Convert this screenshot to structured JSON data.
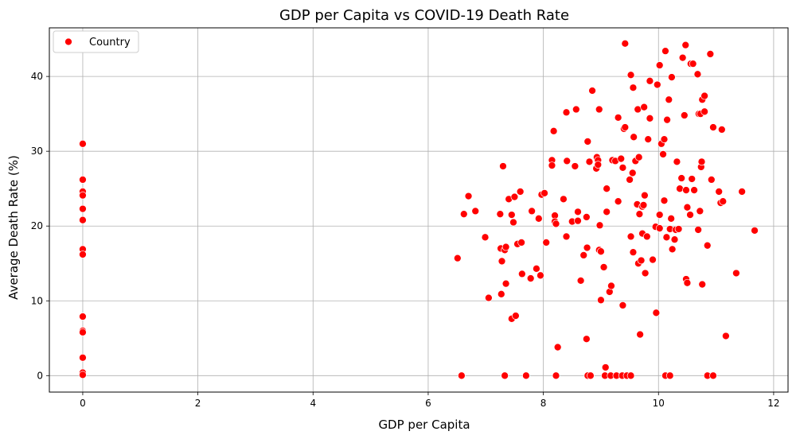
{
  "chart_data": {
    "type": "scatter",
    "title": "GDP per Capita vs COVID-19 Death Rate",
    "xlabel": "GDP per Capita",
    "ylabel": "Average Death Rate (%)",
    "xlim": [
      -0.58,
      12.25
    ],
    "ylim": [
      -2.2,
      46.5
    ],
    "xticks": [
      0,
      2,
      4,
      6,
      8,
      10,
      12
    ],
    "yticks": [
      0,
      10,
      20,
      30,
      40
    ],
    "grid": true,
    "legend_position": "top-left",
    "marker_color": "#ff0000",
    "series": [
      {
        "name": "Country",
        "points": [
          [
            0,
            31.0
          ],
          [
            0,
            26.2
          ],
          [
            0,
            24.6
          ],
          [
            0,
            24.1
          ],
          [
            0,
            22.3
          ],
          [
            0,
            20.8
          ],
          [
            0,
            16.9
          ],
          [
            0,
            16.2
          ],
          [
            0,
            7.9
          ],
          [
            0,
            6.0
          ],
          [
            0,
            5.8
          ],
          [
            0,
            2.4
          ],
          [
            0,
            0.4
          ],
          [
            0,
            0.1
          ],
          [
            6.51,
            15.7
          ],
          [
            6.62,
            21.6
          ],
          [
            6.7,
            24.0
          ],
          [
            6.82,
            22.0
          ],
          [
            6.99,
            18.5
          ],
          [
            7.05,
            10.4
          ],
          [
            7.25,
            21.6
          ],
          [
            7.26,
            17.0
          ],
          [
            7.27,
            10.9
          ],
          [
            7.28,
            15.3
          ],
          [
            7.3,
            28.0
          ],
          [
            7.33,
            16.8
          ],
          [
            7.35,
            17.2
          ],
          [
            7.35,
            12.3
          ],
          [
            7.4,
            23.6
          ],
          [
            7.45,
            21.5
          ],
          [
            7.45,
            7.6
          ],
          [
            7.48,
            20.5
          ],
          [
            7.5,
            23.9
          ],
          [
            7.52,
            8.0
          ],
          [
            7.55,
            17.6
          ],
          [
            7.6,
            24.6
          ],
          [
            7.62,
            17.8
          ],
          [
            7.63,
            13.6
          ],
          [
            7.78,
            13.0
          ],
          [
            7.8,
            22.0
          ],
          [
            7.88,
            14.3
          ],
          [
            7.92,
            21.0
          ],
          [
            7.95,
            13.4
          ],
          [
            7.97,
            24.2
          ],
          [
            8.02,
            24.4
          ],
          [
            8.05,
            17.8
          ],
          [
            8.15,
            28.8
          ],
          [
            8.15,
            28.1
          ],
          [
            8.18,
            32.7
          ],
          [
            8.2,
            21.4
          ],
          [
            8.2,
            20.6
          ],
          [
            8.22,
            20.3
          ],
          [
            8.25,
            3.8
          ],
          [
            8.35,
            23.6
          ],
          [
            8.4,
            18.6
          ],
          [
            8.4,
            35.2
          ],
          [
            8.41,
            28.7
          ],
          [
            8.5,
            20.6
          ],
          [
            8.55,
            28.0
          ],
          [
            8.57,
            35.6
          ],
          [
            8.6,
            21.9
          ],
          [
            8.6,
            20.7
          ],
          [
            8.65,
            12.7
          ],
          [
            8.7,
            16.1
          ],
          [
            8.75,
            21.2
          ],
          [
            8.75,
            4.9
          ],
          [
            8.76,
            17.1
          ],
          [
            8.77,
            31.3
          ],
          [
            8.8,
            28.6
          ],
          [
            8.85,
            38.1
          ],
          [
            8.92,
            27.7
          ],
          [
            8.93,
            29.2
          ],
          [
            8.95,
            28.8
          ],
          [
            8.95,
            28.2
          ],
          [
            8.97,
            16.8
          ],
          [
            8.97,
            35.6
          ],
          [
            8.98,
            20.1
          ],
          [
            9.0,
            10.1
          ],
          [
            9.0,
            16.6
          ],
          [
            9.05,
            14.5
          ],
          [
            9.08,
            1.1
          ],
          [
            9.1,
            25.0
          ],
          [
            9.1,
            21.9
          ],
          [
            9.15,
            11.2
          ],
          [
            9.18,
            12.0
          ],
          [
            9.2,
            28.8
          ],
          [
            9.25,
            28.7
          ],
          [
            9.3,
            34.5
          ],
          [
            9.3,
            23.3
          ],
          [
            9.35,
            29.0
          ],
          [
            9.38,
            27.8
          ],
          [
            9.38,
            9.4
          ],
          [
            9.4,
            33.0
          ],
          [
            9.42,
            33.2
          ],
          [
            9.42,
            44.4
          ],
          [
            9.5,
            26.2
          ],
          [
            9.52,
            40.2
          ],
          [
            9.52,
            18.6
          ],
          [
            9.55,
            27.1
          ],
          [
            9.56,
            38.5
          ],
          [
            9.56,
            16.5
          ],
          [
            9.57,
            31.9
          ],
          [
            9.6,
            28.7
          ],
          [
            9.63,
            22.9
          ],
          [
            9.64,
            35.6
          ],
          [
            9.65,
            15.0
          ],
          [
            9.66,
            29.2
          ],
          [
            9.67,
            21.6
          ],
          [
            9.68,
            5.5
          ],
          [
            9.7,
            15.4
          ],
          [
            9.72,
            22.6
          ],
          [
            9.72,
            19.0
          ],
          [
            9.74,
            22.8
          ],
          [
            9.75,
            35.9
          ],
          [
            9.76,
            24.1
          ],
          [
            9.77,
            13.7
          ],
          [
            9.8,
            18.6
          ],
          [
            9.82,
            31.6
          ],
          [
            9.85,
            39.4
          ],
          [
            9.85,
            34.4
          ],
          [
            9.9,
            15.5
          ],
          [
            9.95,
            19.9
          ],
          [
            9.96,
            8.4
          ],
          [
            9.98,
            38.9
          ],
          [
            10.02,
            41.5
          ],
          [
            10.02,
            21.5
          ],
          [
            10.02,
            19.7
          ],
          [
            10.05,
            31.0
          ],
          [
            10.08,
            29.6
          ],
          [
            10.1,
            31.6
          ],
          [
            10.1,
            23.4
          ],
          [
            10.12,
            43.4
          ],
          [
            10.14,
            18.5
          ],
          [
            10.15,
            34.2
          ],
          [
            10.18,
            36.9
          ],
          [
            10.2,
            19.6
          ],
          [
            10.22,
            21.0
          ],
          [
            10.23,
            39.9
          ],
          [
            10.24,
            16.9
          ],
          [
            10.28,
            18.2
          ],
          [
            10.3,
            19.5
          ],
          [
            10.32,
            28.6
          ],
          [
            10.35,
            19.6
          ],
          [
            10.37,
            25.0
          ],
          [
            10.4,
            26.4
          ],
          [
            10.42,
            42.5
          ],
          [
            10.45,
            34.8
          ],
          [
            10.47,
            44.2
          ],
          [
            10.48,
            24.8
          ],
          [
            10.48,
            12.9
          ],
          [
            10.5,
            22.5
          ],
          [
            10.5,
            12.4
          ],
          [
            10.55,
            21.5
          ],
          [
            10.56,
            41.7
          ],
          [
            10.58,
            26.3
          ],
          [
            10.6,
            41.7
          ],
          [
            10.62,
            24.8
          ],
          [
            10.68,
            40.3
          ],
          [
            10.69,
            19.5
          ],
          [
            10.7,
            35.0
          ],
          [
            10.72,
            22.0
          ],
          [
            10.73,
            35.0
          ],
          [
            10.74,
            27.9
          ],
          [
            10.75,
            28.6
          ],
          [
            10.76,
            12.2
          ],
          [
            10.76,
            36.9
          ],
          [
            10.8,
            37.4
          ],
          [
            10.8,
            35.3
          ],
          [
            10.85,
            17.4
          ],
          [
            10.9,
            43.0
          ],
          [
            10.92,
            26.2
          ],
          [
            10.95,
            33.2
          ],
          [
            11.05,
            24.6
          ],
          [
            11.08,
            23.1
          ],
          [
            11.1,
            32.9
          ],
          [
            11.12,
            23.3
          ],
          [
            11.17,
            5.3
          ],
          [
            11.35,
            13.7
          ],
          [
            11.45,
            24.6
          ],
          [
            11.67,
            19.4
          ],
          [
            6.58,
            0
          ],
          [
            7.33,
            0
          ],
          [
            7.7,
            0
          ],
          [
            8.22,
            0
          ],
          [
            8.77,
            0
          ],
          [
            8.82,
            0
          ],
          [
            9.07,
            0
          ],
          [
            9.17,
            0
          ],
          [
            9.27,
            0
          ],
          [
            9.37,
            0
          ],
          [
            9.45,
            0
          ],
          [
            9.52,
            0
          ],
          [
            10.12,
            0
          ],
          [
            10.2,
            0
          ],
          [
            10.85,
            0
          ],
          [
            10.95,
            0
          ]
        ]
      }
    ]
  }
}
